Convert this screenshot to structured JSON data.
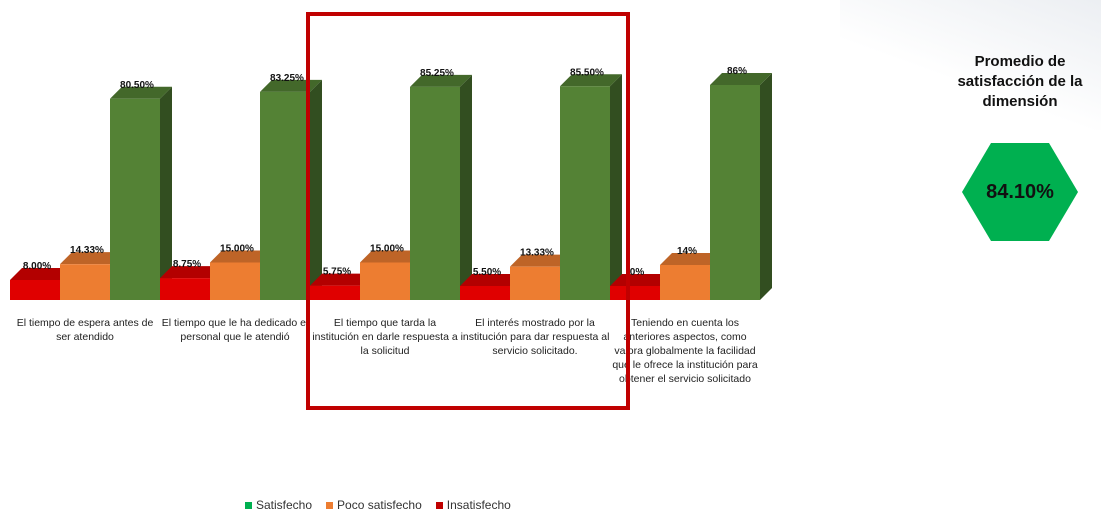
{
  "chart_data": {
    "type": "bar",
    "style": "3d-clustered",
    "categories": [
      "El tiempo de espera antes de ser atendido",
      "El tiempo que le ha dedicado el personal que le atendió",
      "El tiempo que tarda la institución en darle respuesta a la solicitud",
      "El interés mostrado por la institución para dar respuesta al servicio solicitado.",
      "Teniendo en cuenta los anteriores aspectos, como valora globalmente la facilidad que le ofrece la institución para obtener el servicio solicitado"
    ],
    "series": [
      {
        "name": "Insatisfecho",
        "color": "#e00000",
        "values": [
          8.0,
          8.75,
          5.75,
          5.5,
          0
        ],
        "labels": [
          "8.00%",
          "8.75%",
          "5.75%",
          "5.50%",
          "0%"
        ]
      },
      {
        "name": "Poco satisfecho",
        "color": "#ed7d31",
        "values": [
          14.33,
          15.0,
          15.0,
          13.33,
          14
        ],
        "labels": [
          "14.33%",
          "15.00%",
          "15.00%",
          "13.33%",
          "14%"
        ]
      },
      {
        "name": "Satisfecho",
        "color": "#548235",
        "values": [
          80.5,
          83.25,
          85.25,
          85.5,
          86
        ],
        "labels": [
          "80.50%",
          "83.25%",
          "85.25%",
          "85.50%",
          "86%"
        ]
      }
    ],
    "ylim": [
      0,
      100
    ],
    "legend_position": "bottom",
    "legend": [
      "Satisfecho",
      "Poco satisfecho",
      "Insatisfecho"
    ],
    "highlighted_categories": [
      2,
      3
    ]
  },
  "summary": {
    "title": "Promedio de satisfacción de la dimensión",
    "value": "84.10%",
    "color": "#00b050"
  }
}
